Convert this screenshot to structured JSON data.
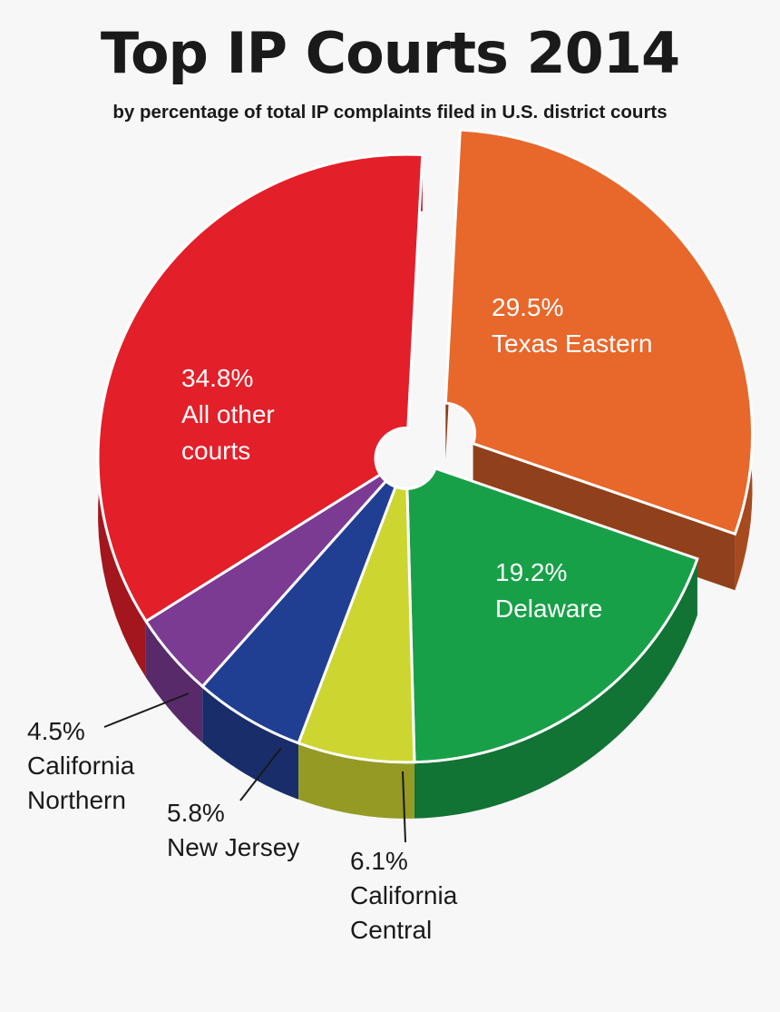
{
  "chart_data": {
    "type": "pie",
    "title": "Top IP Courts 2014",
    "subtitle": "by percentage of total IP complaints filed in U.S. district courts",
    "slices": [
      {
        "label": "Texas Eastern",
        "value": 29.5,
        "value_label": "29.5%",
        "color": "#e8672b",
        "exploded": true
      },
      {
        "label": "Delaware",
        "value": 19.2,
        "value_label": "19.2%",
        "color": "#18a048"
      },
      {
        "label": "California Central",
        "value": 6.1,
        "value_label": "6.1%",
        "color": "#cdd631"
      },
      {
        "label": "New Jersey",
        "value": 5.8,
        "value_label": "5.8%",
        "color": "#213f92"
      },
      {
        "label": "California Northern",
        "value": 4.5,
        "value_label": "4.5%",
        "color": "#7b3b93"
      },
      {
        "label": "All other courts",
        "value": 34.8,
        "value_label": "34.8%",
        "color": "#e31f29"
      }
    ]
  }
}
